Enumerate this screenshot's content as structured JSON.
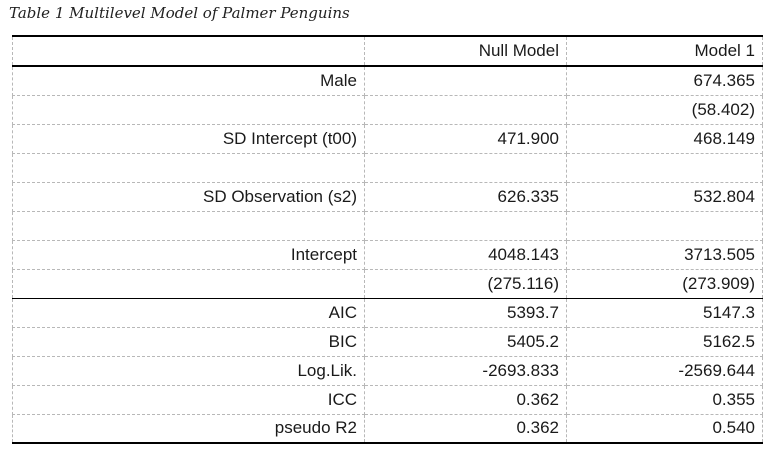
{
  "caption": "Table 1 Multilevel Model of Palmer Penguins",
  "columns": [
    "",
    "Null Model",
    "Model 1"
  ],
  "rows": [
    {
      "label": "Male",
      "null_model": "",
      "model_1": "674.365"
    },
    {
      "label": "",
      "null_model": "",
      "model_1": "(58.402)"
    },
    {
      "label": "SD Intercept (t00)",
      "null_model": "471.900",
      "model_1": "468.149"
    },
    {
      "label": "",
      "null_model": "",
      "model_1": ""
    },
    {
      "label": "SD Observation (s2)",
      "null_model": "626.335",
      "model_1": "532.804"
    },
    {
      "label": "",
      "null_model": "",
      "model_1": ""
    },
    {
      "label": "Intercept",
      "null_model": "4048.143",
      "model_1": "3713.505"
    },
    {
      "label": "",
      "null_model": "(275.116)",
      "model_1": "(273.909)"
    },
    {
      "label": "AIC",
      "null_model": "5393.7",
      "model_1": "5147.3"
    },
    {
      "label": "BIC",
      "null_model": "5405.2",
      "model_1": "5162.5"
    },
    {
      "label": "Log.Lik.",
      "null_model": "-2693.833",
      "model_1": "-2569.644"
    },
    {
      "label": "ICC",
      "null_model": "0.362",
      "model_1": "0.355"
    },
    {
      "label": "pseudo R2",
      "null_model": "0.362",
      "model_1": "0.540"
    }
  ]
}
